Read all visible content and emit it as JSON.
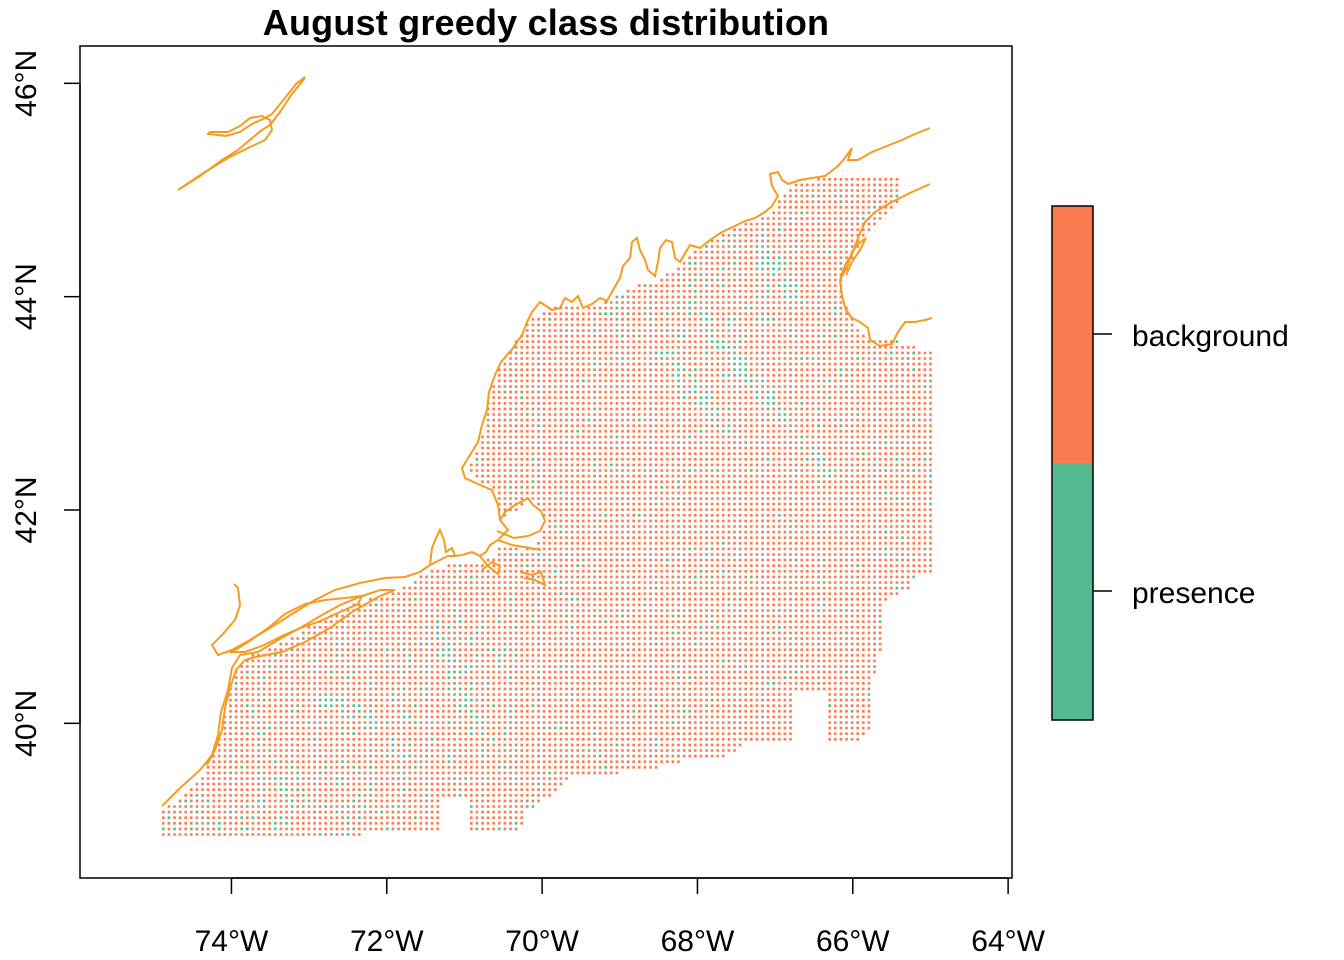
{
  "title": "August greedy class distribution",
  "map": {
    "lon_range": [
      -75.95,
      -63.95
    ],
    "lat_range": [
      38.55,
      46.35
    ],
    "x_ticks": [
      {
        "lon": -74,
        "label": "74°W"
      },
      {
        "lon": -72,
        "label": "72°W"
      },
      {
        "lon": -70,
        "label": "70°W"
      },
      {
        "lon": -68,
        "label": "68°W"
      },
      {
        "lon": -66,
        "label": "66°W"
      },
      {
        "lon": -64,
        "label": "64°W"
      }
    ],
    "y_ticks": [
      {
        "lat": 40,
        "label": "40°N"
      },
      {
        "lat": 42,
        "label": "42°N"
      },
      {
        "lat": 44,
        "label": "44°N"
      },
      {
        "lat": 46,
        "label": "46°N"
      }
    ]
  },
  "legend": {
    "classes": [
      {
        "label": "background",
        "color": "#F97B50"
      },
      {
        "label": "presence",
        "color": "#55B992"
      }
    ]
  },
  "colors": {
    "coastline": "#F79B1E",
    "background": "#F97B50",
    "presence": "#55B992"
  }
}
